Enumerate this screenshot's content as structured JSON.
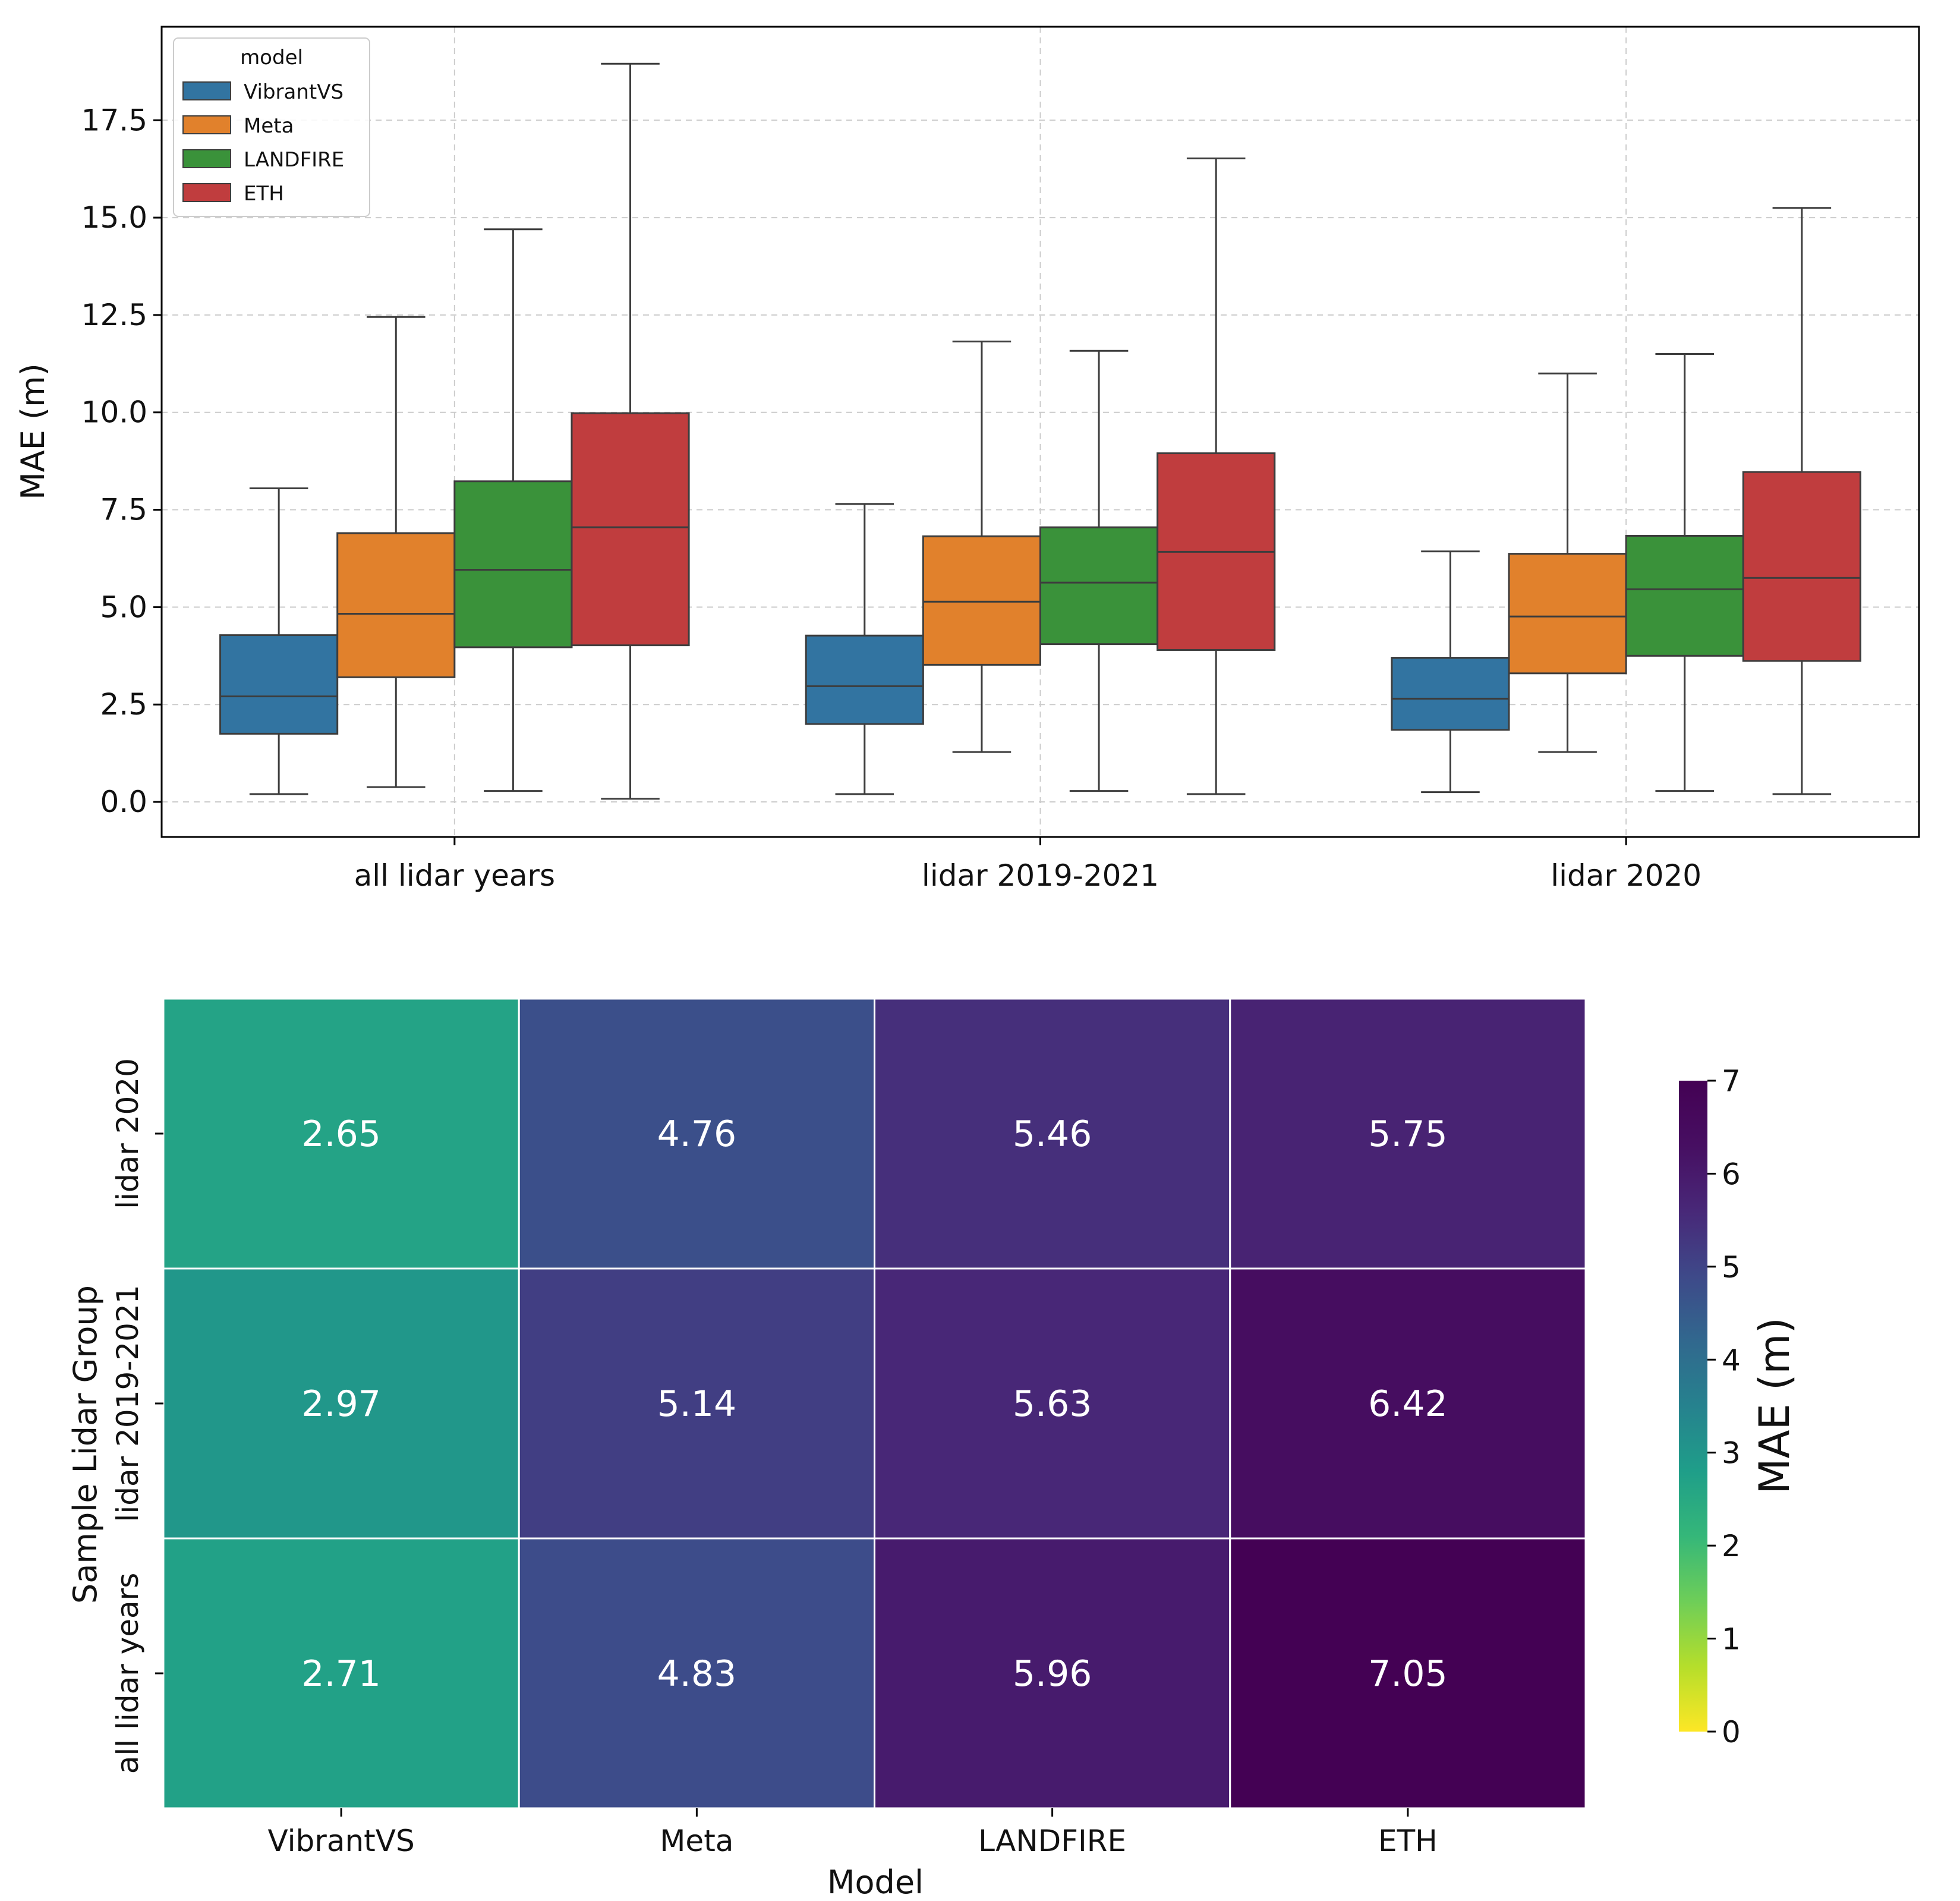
{
  "chart_data": [
    {
      "type": "box",
      "title": "",
      "xlabel": "",
      "ylabel": "MAE (m)",
      "ylim": [
        -0.9,
        19.9
      ],
      "yticks": [
        "0.0",
        "2.5",
        "5.0",
        "7.5",
        "10.0",
        "12.5",
        "15.0",
        "17.5"
      ],
      "categories": [
        "all lidar years",
        "lidar 2019-2021",
        "lidar 2020"
      ],
      "grid": true,
      "legend": {
        "title": "model",
        "placement": "top-left",
        "entries": [
          "VibrantVS",
          "Meta",
          "LANDFIRE",
          "ETH"
        ]
      },
      "series": [
        {
          "name": "VibrantVS",
          "color": "#3274a1",
          "boxes": [
            {
              "min": 0.2,
              "q1": 1.75,
              "median": 2.71,
              "q3": 4.28,
              "max": 8.05
            },
            {
              "min": 0.2,
              "q1": 2.0,
              "median": 2.97,
              "q3": 4.27,
              "max": 7.65
            },
            {
              "min": 0.25,
              "q1": 1.85,
              "median": 2.65,
              "q3": 3.7,
              "max": 6.43
            }
          ]
        },
        {
          "name": "Meta",
          "color": "#e1812c",
          "boxes": [
            {
              "min": 0.38,
              "q1": 3.2,
              "median": 4.83,
              "q3": 6.9,
              "max": 12.45
            },
            {
              "min": 1.28,
              "q1": 3.52,
              "median": 5.14,
              "q3": 6.82,
              "max": 11.82
            },
            {
              "min": 1.28,
              "q1": 3.3,
              "median": 4.76,
              "q3": 6.37,
              "max": 11.0
            }
          ]
        },
        {
          "name": "LANDFIRE",
          "color": "#3a923a",
          "boxes": [
            {
              "min": 0.28,
              "q1": 3.97,
              "median": 5.96,
              "q3": 8.23,
              "max": 14.7
            },
            {
              "min": 0.28,
              "q1": 4.05,
              "median": 5.63,
              "q3": 7.05,
              "max": 11.58
            },
            {
              "min": 0.28,
              "q1": 3.75,
              "median": 5.46,
              "q3": 6.83,
              "max": 11.5
            }
          ]
        },
        {
          "name": "ETH",
          "color": "#c03d3e",
          "boxes": [
            {
              "min": 0.08,
              "q1": 4.02,
              "median": 7.05,
              "q3": 9.98,
              "max": 18.95
            },
            {
              "min": 0.2,
              "q1": 3.9,
              "median": 6.42,
              "q3": 8.95,
              "max": 16.52
            },
            {
              "min": 0.2,
              "q1": 3.62,
              "median": 5.75,
              "q3": 8.47,
              "max": 15.25
            }
          ]
        }
      ]
    },
    {
      "type": "heatmap",
      "title": "",
      "xlabel": "Model",
      "ylabel": "Sample Lidar Group",
      "x": [
        "VibrantVS",
        "Meta",
        "LANDFIRE",
        "ETH"
      ],
      "y": [
        "lidar 2020",
        "lidar 2019-2021",
        "all lidar years"
      ],
      "values": [
        [
          2.65,
          4.76,
          5.46,
          5.75
        ],
        [
          2.97,
          5.14,
          5.63,
          6.42
        ],
        [
          2.71,
          4.83,
          5.96,
          7.05
        ]
      ],
      "labels": [
        [
          "2.65",
          "4.76",
          "5.46",
          "5.75"
        ],
        [
          "2.97",
          "5.14",
          "5.63",
          "6.42"
        ],
        [
          "2.71",
          "4.83",
          "5.96",
          "7.05"
        ]
      ],
      "colormap": "viridis_r",
      "colorbar": {
        "label": "MAE (m)",
        "range": [
          0,
          7
        ],
        "ticks": [
          "0",
          "1",
          "2",
          "3",
          "4",
          "5",
          "6",
          "7"
        ]
      }
    }
  ]
}
